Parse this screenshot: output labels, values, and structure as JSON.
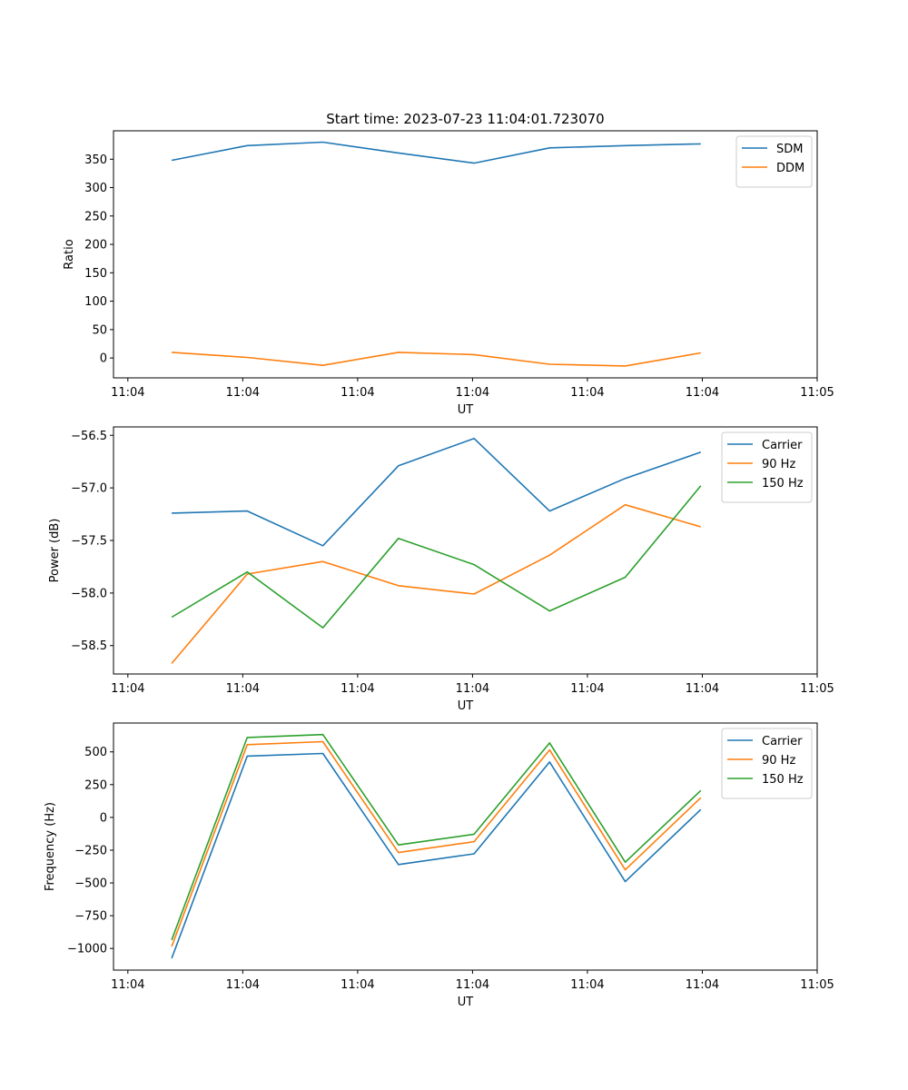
{
  "figure": {
    "title": "Start time: 2023-07-23 11:04:01.723070"
  },
  "colors": {
    "series1": "#1f77b4",
    "series2": "#ff7f0e",
    "series3": "#2ca02c"
  },
  "chart_data": [
    {
      "type": "line",
      "id": "ratio",
      "title": "Start time: 2023-07-23 11:04:01.723070",
      "xlabel": "UT",
      "ylabel": "Ratio",
      "x": [
        1,
        2,
        3,
        4,
        5,
        6,
        7,
        8
      ],
      "xlim": [
        0.23,
        9.54
      ],
      "xticks": [
        {
          "value": 0.42,
          "label": "11:04"
        },
        {
          "value": 1.94,
          "label": "11:04"
        },
        {
          "value": 3.46,
          "label": "11:04"
        },
        {
          "value": 4.98,
          "label": "11:04"
        },
        {
          "value": 6.5,
          "label": "11:04"
        },
        {
          "value": 8.02,
          "label": "11:04"
        },
        {
          "value": 9.54,
          "label": "11:05"
        }
      ],
      "ylim": [
        -35,
        400
      ],
      "yticks": [
        0,
        50,
        100,
        150,
        200,
        250,
        300,
        350
      ],
      "legend": "top-right",
      "series": [
        {
          "name": "SDM",
          "color": "#1f77b4",
          "values": [
            348,
            374,
            380,
            361,
            343,
            370,
            374,
            377
          ]
        },
        {
          "name": "DDM",
          "color": "#ff7f0e",
          "values": [
            10,
            1,
            -13,
            10,
            6,
            -11,
            -14,
            9
          ]
        }
      ]
    },
    {
      "type": "line",
      "id": "power",
      "xlabel": "UT",
      "ylabel": "Power (dB)",
      "x": [
        1,
        2,
        3,
        4,
        5,
        6,
        7,
        8
      ],
      "xlim": [
        0.23,
        9.54
      ],
      "xticks": [
        {
          "value": 0.42,
          "label": "11:04"
        },
        {
          "value": 1.94,
          "label": "11:04"
        },
        {
          "value": 3.46,
          "label": "11:04"
        },
        {
          "value": 4.98,
          "label": "11:04"
        },
        {
          "value": 6.5,
          "label": "11:04"
        },
        {
          "value": 8.02,
          "label": "11:04"
        },
        {
          "value": 9.54,
          "label": "11:05"
        }
      ],
      "ylim": [
        -58.77,
        -56.42
      ],
      "yticks": [
        {
          "value": -58.5,
          "label": "−58.5"
        },
        {
          "value": -58.0,
          "label": "−58.0"
        },
        {
          "value": -57.5,
          "label": "−57.5"
        },
        {
          "value": -57.0,
          "label": "−57.0"
        },
        {
          "value": -56.5,
          "label": "−56.5"
        }
      ],
      "legend": "top-right",
      "series": [
        {
          "name": "Carrier",
          "color": "#1f77b4",
          "values": [
            -57.24,
            -57.22,
            -57.55,
            -56.79,
            -56.53,
            -57.22,
            -56.91,
            -56.66
          ]
        },
        {
          "name": "90 Hz",
          "color": "#ff7f0e",
          "values": [
            -58.67,
            -57.82,
            -57.7,
            -57.93,
            -58.01,
            -57.64,
            -57.16,
            -57.37
          ]
        },
        {
          "name": "150 Hz",
          "color": "#2ca02c",
          "values": [
            -58.23,
            -57.8,
            -58.33,
            -57.48,
            -57.73,
            -58.17,
            -57.85,
            -56.98
          ]
        }
      ]
    },
    {
      "type": "line",
      "id": "frequency",
      "xlabel": "UT",
      "ylabel": "Frequency (Hz)",
      "x": [
        1,
        2,
        3,
        4,
        5,
        6,
        7,
        8
      ],
      "xlim": [
        0.23,
        9.54
      ],
      "xticks": [
        {
          "value": 0.42,
          "label": "11:04"
        },
        {
          "value": 1.94,
          "label": "11:04"
        },
        {
          "value": 3.46,
          "label": "11:04"
        },
        {
          "value": 4.98,
          "label": "11:04"
        },
        {
          "value": 6.5,
          "label": "11:04"
        },
        {
          "value": 8.02,
          "label": "11:04"
        },
        {
          "value": 9.54,
          "label": "11:05"
        }
      ],
      "ylim": [
        -1165,
        720
      ],
      "yticks": [
        {
          "value": -1000,
          "label": "−1000"
        },
        {
          "value": -750,
          "label": "−750"
        },
        {
          "value": -500,
          "label": "−500"
        },
        {
          "value": -250,
          "label": "−250"
        },
        {
          "value": 0,
          "label": "0"
        },
        {
          "value": 250,
          "label": "250"
        },
        {
          "value": 500,
          "label": "500"
        }
      ],
      "legend": "top-right",
      "series": [
        {
          "name": "Carrier",
          "color": "#1f77b4",
          "values": [
            -1075,
            468,
            488,
            -360,
            -278,
            423,
            -490,
            60
          ]
        },
        {
          "name": "90 Hz",
          "color": "#ff7f0e",
          "values": [
            -985,
            555,
            578,
            -268,
            -185,
            515,
            -400,
            150
          ]
        },
        {
          "name": "150 Hz",
          "color": "#2ca02c",
          "values": [
            -935,
            610,
            632,
            -210,
            -128,
            568,
            -342,
            205
          ]
        }
      ]
    }
  ]
}
